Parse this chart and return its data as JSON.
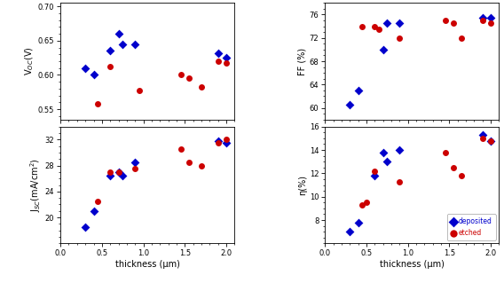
{
  "dep_voc_x": [
    0.3,
    0.4,
    0.6,
    0.7,
    0.75,
    0.9,
    1.9,
    2.0
  ],
  "dep_voc_y": [
    0.61,
    0.6,
    0.635,
    0.66,
    0.645,
    0.644,
    0.632,
    0.625
  ],
  "etch_voc_x": [
    0.45,
    0.6,
    0.95,
    1.45,
    1.55,
    1.7,
    1.9,
    2.0
  ],
  "etch_voc_y": [
    0.558,
    0.612,
    0.577,
    0.6,
    0.596,
    0.582,
    0.62,
    0.618
  ],
  "dep_ff_x": [
    0.3,
    0.4,
    0.7,
    0.75,
    0.9,
    1.9,
    2.0
  ],
  "dep_ff_y": [
    60.5,
    63.0,
    70.0,
    74.5,
    74.5,
    75.5,
    75.5
  ],
  "etch_ff_x": [
    0.45,
    0.6,
    0.65,
    0.9,
    1.45,
    1.55,
    1.65,
    1.9,
    2.0
  ],
  "etch_ff_y": [
    74.0,
    74.0,
    73.5,
    72.0,
    75.0,
    74.5,
    72.0,
    75.0,
    74.5
  ],
  "dep_jsc_x": [
    0.3,
    0.4,
    0.6,
    0.7,
    0.75,
    0.9,
    1.9,
    2.0
  ],
  "dep_jsc_y": [
    18.5,
    21.0,
    26.5,
    27.0,
    26.5,
    28.5,
    31.8,
    31.5
  ],
  "etch_jsc_x": [
    0.45,
    0.6,
    0.7,
    0.9,
    1.45,
    1.55,
    1.7,
    1.9,
    2.0
  ],
  "etch_jsc_y": [
    22.5,
    27.0,
    27.0,
    27.5,
    30.5,
    28.5,
    28.0,
    31.5,
    32.0
  ],
  "dep_eta_x": [
    0.3,
    0.4,
    0.6,
    0.7,
    0.75,
    0.9,
    1.9,
    2.0
  ],
  "dep_eta_y": [
    7.0,
    7.8,
    11.8,
    13.8,
    13.0,
    14.0,
    15.3,
    14.8
  ],
  "etch_eta_x": [
    0.45,
    0.5,
    0.6,
    0.9,
    1.45,
    1.55,
    1.65,
    1.9,
    2.0
  ],
  "etch_eta_y": [
    9.3,
    9.5,
    12.2,
    11.3,
    13.8,
    12.5,
    11.8,
    15.0,
    14.8
  ],
  "dep_color": "#0000cc",
  "etch_color": "#cc0000",
  "dep_marker": "D",
  "etch_marker": "o",
  "marker_size": 5,
  "voc_ylim": [
    0.535,
    0.705
  ],
  "voc_yticks": [
    0.55,
    0.6,
    0.65,
    0.7
  ],
  "ff_ylim": [
    58,
    78
  ],
  "ff_yticks": [
    60,
    64,
    68,
    72,
    76
  ],
  "jsc_ylim": [
    16,
    34
  ],
  "jsc_yticks": [
    20,
    24,
    28,
    32
  ],
  "eta_ylim": [
    6,
    16
  ],
  "eta_yticks": [
    8,
    10,
    12,
    14,
    16
  ],
  "xlim": [
    0.1,
    2.1
  ],
  "xticks": [
    0.0,
    0.5,
    1.0,
    1.5,
    2.0
  ],
  "xlabel": "thickness (μm)",
  "voc_ylabel": "V$_{OC}$(V)",
  "jsc_ylabel": "J$_{SC}$(mA/cm$^{2}$)",
  "ff_ylabel": "FF (%)",
  "eta_ylabel": "η(%)",
  "legend_labels": [
    "deposited",
    "etched"
  ],
  "bg_color": "#ffffff"
}
